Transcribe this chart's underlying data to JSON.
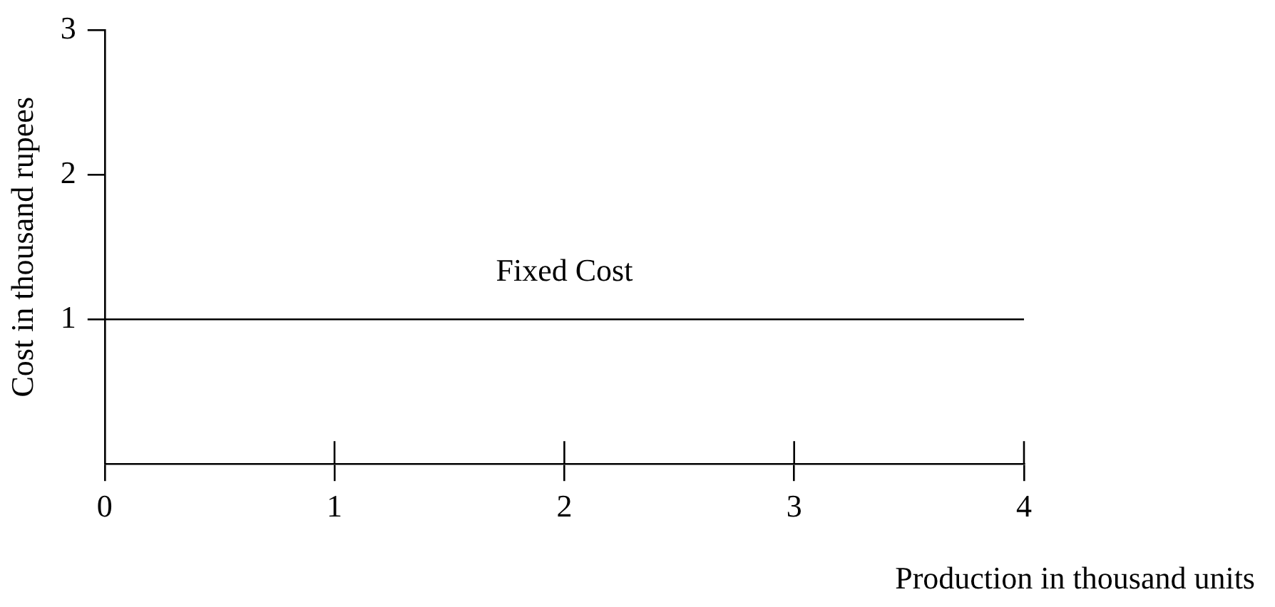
{
  "chart_data": {
    "type": "line",
    "xlabel": "Production in thousand units",
    "ylabel": "Cost in thousand rupees",
    "x": [
      0,
      4
    ],
    "series": [
      {
        "color": "#000000",
        "values": [
          1,
          1
        ]
      }
    ],
    "xlim": [
      0,
      4
    ],
    "xticks": [
      0,
      1,
      2,
      3,
      4
    ],
    "ylim": [
      0,
      3
    ],
    "yticks": [
      1,
      2,
      3
    ],
    "annotations": [
      {
        "text": "Fixed Cost",
        "x": 2,
        "y": 1
      }
    ],
    "grid": false,
    "legend": false,
    "marker": "none",
    "line_style": "solid"
  }
}
